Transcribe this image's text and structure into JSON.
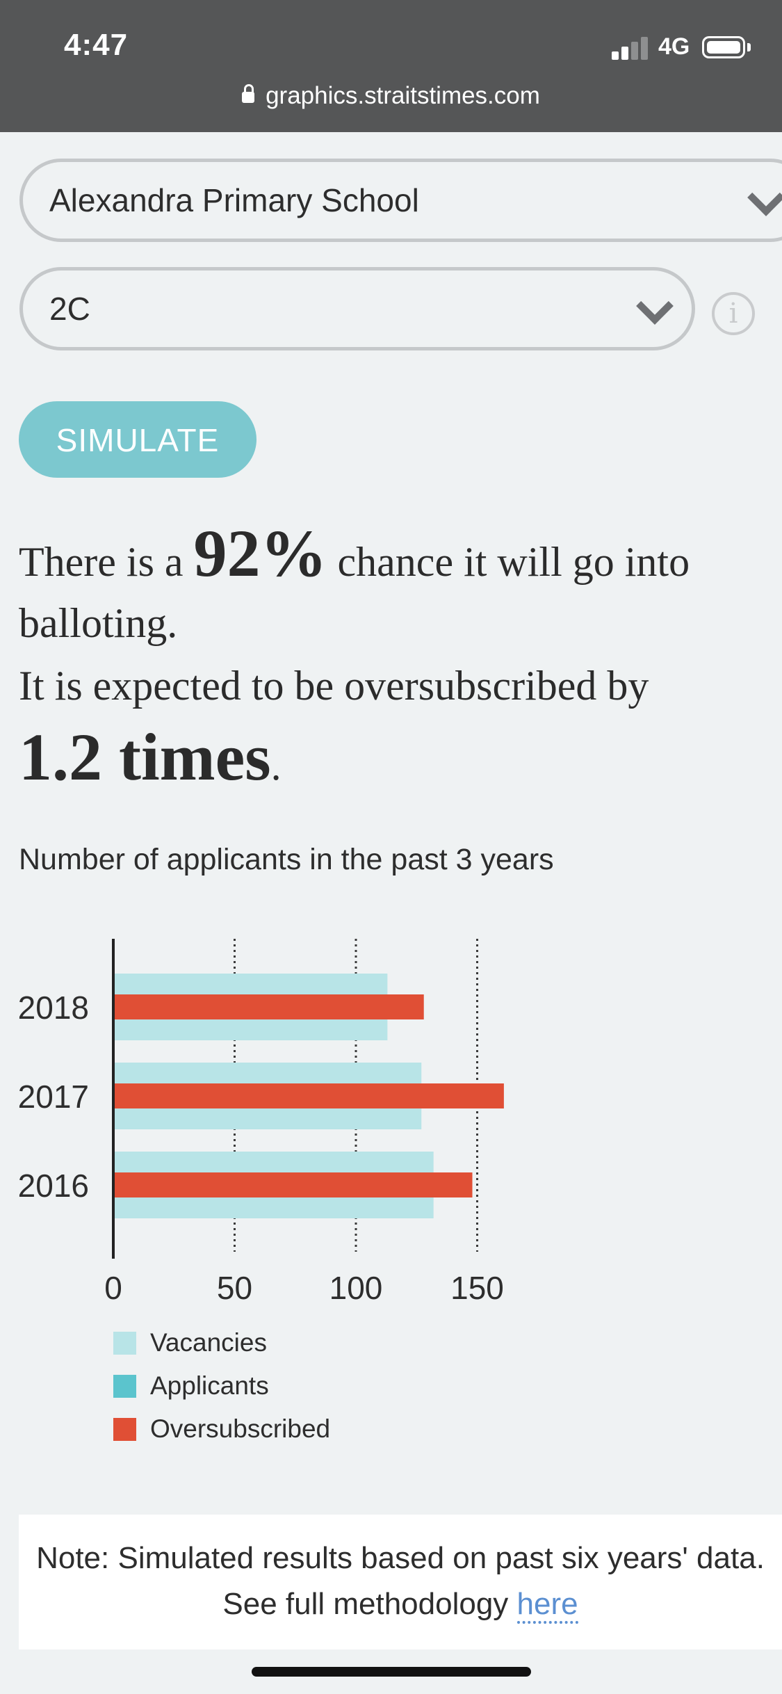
{
  "status_bar": {
    "time": "4:47",
    "network": "4G",
    "signal_bars": 2,
    "signal_total": 4
  },
  "browser": {
    "url": "graphics.straitstimes.com"
  },
  "form": {
    "school_value": "Alexandra Primary School",
    "phase_value": "2C",
    "info_icon": "i",
    "simulate_label": "SIMULATE"
  },
  "result": {
    "prefix": "There is a ",
    "chance": "92%",
    "suffix": " chance it will go into balloting.",
    "line2": "It is expected to be oversubscribed by",
    "times": "1.2 times",
    "period": "."
  },
  "chart_title": "Number of applicants in the past 3 years",
  "chart_data": {
    "type": "bar",
    "orientation": "horizontal",
    "title": "Number of applicants in the past 3 years",
    "categories": [
      "2018",
      "2017",
      "2016"
    ],
    "series": [
      {
        "name": "Vacancies",
        "values": [
          113,
          127,
          132
        ],
        "color": "#b8e4e7"
      },
      {
        "name": "Applicants",
        "values": [
          128,
          161,
          148
        ],
        "color": "#5bc4cd"
      }
    ],
    "highlight_color": "#e04f35",
    "x_ticks": [
      0,
      50,
      100,
      150
    ],
    "xlim": [
      0,
      170
    ],
    "grid": true
  },
  "legend": [
    {
      "label": "Vacancies",
      "color": "#b8e4e7"
    },
    {
      "label": "Applicants",
      "color": "#5bc4cd"
    },
    {
      "label": "Oversubscribed",
      "color": "#e04f35"
    }
  ],
  "note": {
    "text": "Note: Simulated results based on past six years' data. See full methodology ",
    "link": "here"
  }
}
